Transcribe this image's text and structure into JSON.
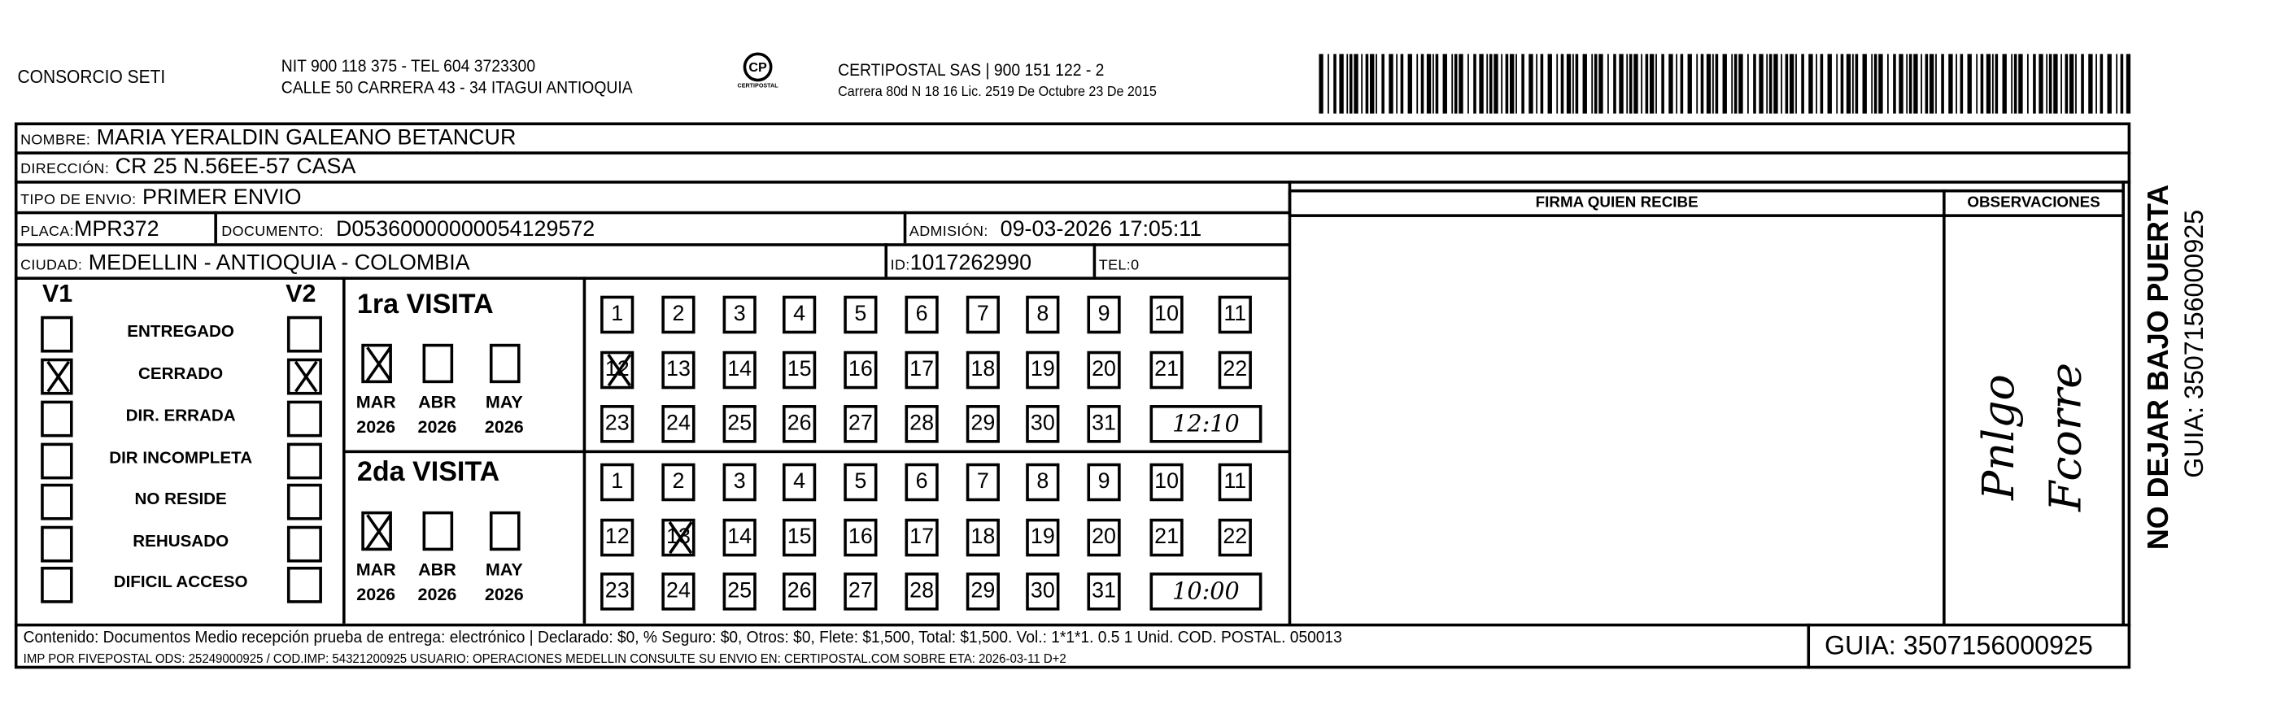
{
  "header": {
    "company": "CONSORCIO SETI",
    "nit_line": "NIT 900 118 375 - TEL 604 3723300",
    "address_line": "CALLE 50 CARRERA 43 - 34 ITAGUI ANTIOQUIA",
    "logo_text": "CERTIPOSTAL",
    "certipostal_line": "CERTIPOSTAL SAS | 900 151 122 - 2",
    "license_line": "Carrera 80d N 18 16  Lic. 2519 De Octubre 23 De 2015"
  },
  "recipient": {
    "nombre_label": "NOMBRE:",
    "nombre": "MARIA YERALDIN GALEANO BETANCUR",
    "direccion_label": "DIRECCIÓN:",
    "direccion": "CR 25 N.56EE-57 CASA",
    "tipo_label": "TIPO DE ENVIO:",
    "tipo": "PRIMER ENVIO",
    "placa_label": "PLACA:",
    "placa": "MPR372",
    "documento_label": "DOCUMENTO:",
    "documento": "D05360000000054129572",
    "admision_label": "ADMISIÓN:",
    "admision": "09-03-2026 17:05:11",
    "ciudad_label": "CIUDAD:",
    "ciudad": "MEDELLIN - ANTIOQUIA - COLOMBIA",
    "id_label": "ID:",
    "id": "1017262990",
    "tel_label": "TEL:",
    "tel": "0"
  },
  "firma_header": "FIRMA QUIEN RECIBE",
  "observaciones_header": "OBSERVACIONES",
  "observaciones_handwritten": [
    "Pnlgo",
    "Fcorre"
  ],
  "side_notice": "NO DEJAR BAJO PUERTA",
  "side_guia": "GUIA: 3507156000925",
  "status": {
    "v1_label": "V1",
    "v2_label": "V2",
    "options": [
      {
        "label": "ENTREGADO",
        "v1": false,
        "v2": false
      },
      {
        "label": "CERRADO",
        "v1": true,
        "v2": true
      },
      {
        "label": "DIR. ERRADA",
        "v1": false,
        "v2": false
      },
      {
        "label": "DIR INCOMPLETA",
        "v1": false,
        "v2": false
      },
      {
        "label": "NO RESIDE",
        "v1": false,
        "v2": false
      },
      {
        "label": "REHUSADO",
        "v1": false,
        "v2": false
      },
      {
        "label": "DIFICIL ACCESO",
        "v1": false,
        "v2": false
      }
    ]
  },
  "visits": [
    {
      "title": "1ra VISITA",
      "months": [
        {
          "m": "MAR",
          "y": "2026",
          "checked": true
        },
        {
          "m": "ABR",
          "y": "2026",
          "checked": false
        },
        {
          "m": "MAY",
          "y": "2026",
          "checked": false
        }
      ],
      "marked_day": 12,
      "time": "12:10"
    },
    {
      "title": "2da VISITA",
      "months": [
        {
          "m": "MAR",
          "y": "2026",
          "checked": true
        },
        {
          "m": "ABR",
          "y": "2026",
          "checked": false
        },
        {
          "m": "MAY",
          "y": "2026",
          "checked": false
        }
      ],
      "marked_day": 13,
      "time": "10:00"
    }
  ],
  "footer": {
    "contenido": "Contenido: Documentos Medio recepción prueba de entrega: electrónico | Declarado: $0, % Seguro: $0, Otros: $0, Flete: $1,500, Total: $1,500. Vol.: 1*1*1. 0.5  1 Unid. COD. POSTAL. 050013",
    "imp": "IMP POR FIVEPOSTAL ODS: 25249000925 / COD.IMP: 54321200925 USUARIO: OPERACIONES MEDELLIN CONSULTE SU ENVIO EN: CERTIPOSTAL.COM SOBRE ETA: 2026-03-11 D+2",
    "guia": "GUIA: 3507156000925"
  }
}
